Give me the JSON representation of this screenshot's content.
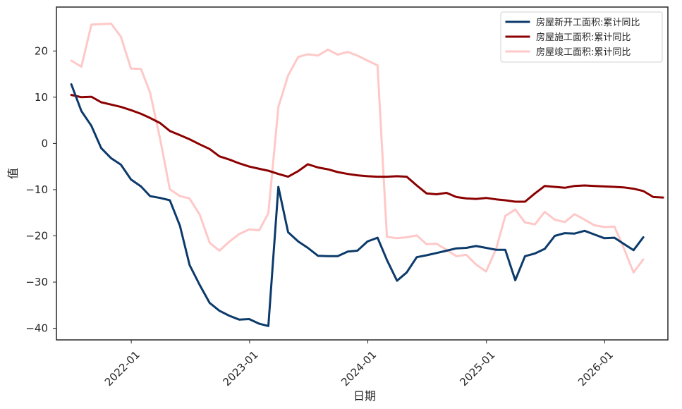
{
  "chart_data": {
    "type": "line",
    "title": "",
    "xlabel": "日期",
    "ylabel": "值",
    "xlim": [
      "2021-05-15",
      "2026-07-15"
    ],
    "ylim": [
      -42.5,
      29.5
    ],
    "x_ticks": [
      "2022-01",
      "2023-01",
      "2024-01",
      "2025-01",
      "2026-01"
    ],
    "y_ticks": [
      -40,
      -30,
      -20,
      -10,
      0,
      10,
      20
    ],
    "grid": false,
    "legend_position": "top-right",
    "colors": {
      "新开工": "#0b3a6b",
      "施工": "#8b0000",
      "竣工": "#ffc8c8"
    },
    "series": [
      {
        "name": "房屋新开工面积:累计同比",
        "color": "#0b3a6b",
        "points": [
          [
            "2021-06-30",
            12.8
          ],
          [
            "2021-07-31",
            7.0
          ],
          [
            "2021-08-31",
            3.8
          ],
          [
            "2021-09-30",
            -1.0
          ],
          [
            "2021-10-31",
            -3.2
          ],
          [
            "2021-11-30",
            -4.6
          ],
          [
            "2021-12-31",
            -7.8
          ],
          [
            "2022-01-31",
            -9.3
          ],
          [
            "2022-02-28",
            -11.4
          ],
          [
            "2022-03-31",
            -11.8
          ],
          [
            "2022-04-30",
            -12.3
          ],
          [
            "2022-05-31",
            -17.8
          ],
          [
            "2022-06-30",
            -26.3
          ],
          [
            "2022-07-31",
            -30.6
          ],
          [
            "2022-08-31",
            -34.5
          ],
          [
            "2022-09-30",
            -36.2
          ],
          [
            "2022-10-31",
            -37.3
          ],
          [
            "2022-11-30",
            -38.1
          ],
          [
            "2022-12-31",
            -38.0
          ],
          [
            "2023-01-31",
            -39.0
          ],
          [
            "2023-02-28",
            -39.5
          ],
          [
            "2023-03-31",
            -9.4
          ],
          [
            "2023-04-30",
            -19.2
          ],
          [
            "2023-05-31",
            -21.2
          ],
          [
            "2023-06-30",
            -22.6
          ],
          [
            "2023-07-31",
            -24.3
          ],
          [
            "2023-08-31",
            -24.4
          ],
          [
            "2023-09-30",
            -24.4
          ],
          [
            "2023-10-31",
            -23.4
          ],
          [
            "2023-11-30",
            -23.2
          ],
          [
            "2023-12-31",
            -21.2
          ],
          [
            "2024-01-31",
            -20.4
          ],
          [
            "2024-02-29",
            -25.2
          ],
          [
            "2024-03-31",
            -29.7
          ],
          [
            "2024-04-30",
            -27.9
          ],
          [
            "2024-05-31",
            -24.6
          ],
          [
            "2024-06-30",
            -24.2
          ],
          [
            "2024-07-31",
            -23.7
          ],
          [
            "2024-08-31",
            -23.2
          ],
          [
            "2024-09-30",
            -22.7
          ],
          [
            "2024-10-31",
            -22.6
          ],
          [
            "2024-11-30",
            -22.2
          ],
          [
            "2024-12-31",
            -22.6
          ],
          [
            "2025-01-31",
            -23.0
          ],
          [
            "2025-02-28",
            -23.0
          ],
          [
            "2025-03-31",
            -29.6
          ],
          [
            "2025-04-30",
            -24.4
          ],
          [
            "2025-05-31",
            -23.8
          ],
          [
            "2025-06-30",
            -22.8
          ],
          [
            "2025-07-31",
            -20.0
          ],
          [
            "2025-08-31",
            -19.4
          ],
          [
            "2025-09-30",
            -19.5
          ],
          [
            "2025-10-31",
            -18.9
          ],
          [
            "2025-11-30",
            -19.7
          ],
          [
            "2025-12-31",
            -20.5
          ],
          [
            "2026-01-31",
            -20.4
          ],
          [
            "2026-02-28",
            -21.7
          ],
          [
            "2026-03-31",
            -23.1
          ],
          [
            "2026-04-30",
            -20.3
          ]
        ]
      },
      {
        "name": "房屋施工面积:累计同比",
        "color": "#8b0000",
        "points": [
          [
            "2021-06-30",
            10.5
          ],
          [
            "2021-07-31",
            10.0
          ],
          [
            "2021-08-31",
            10.1
          ],
          [
            "2021-09-30",
            8.9
          ],
          [
            "2021-10-31",
            8.4
          ],
          [
            "2021-11-30",
            7.9
          ],
          [
            "2021-12-31",
            7.2
          ],
          [
            "2022-01-31",
            6.4
          ],
          [
            "2022-02-28",
            5.5
          ],
          [
            "2022-03-31",
            4.4
          ],
          [
            "2022-04-30",
            2.7
          ],
          [
            "2022-05-31",
            1.8
          ],
          [
            "2022-06-30",
            0.9
          ],
          [
            "2022-07-31",
            -0.2
          ],
          [
            "2022-08-31",
            -1.2
          ],
          [
            "2022-09-30",
            -2.8
          ],
          [
            "2022-10-31",
            -3.5
          ],
          [
            "2022-11-30",
            -4.3
          ],
          [
            "2022-12-31",
            -5.0
          ],
          [
            "2023-01-31",
            -5.5
          ],
          [
            "2023-02-28",
            -5.9
          ],
          [
            "2023-03-31",
            -6.6
          ],
          [
            "2023-04-30",
            -7.2
          ],
          [
            "2023-05-31",
            -6.0
          ],
          [
            "2023-06-30",
            -4.5
          ],
          [
            "2023-07-31",
            -5.2
          ],
          [
            "2023-08-31",
            -5.6
          ],
          [
            "2023-09-30",
            -6.2
          ],
          [
            "2023-10-31",
            -6.6
          ],
          [
            "2023-11-30",
            -6.9
          ],
          [
            "2023-12-31",
            -7.1
          ],
          [
            "2024-01-31",
            -7.2
          ],
          [
            "2024-02-29",
            -7.2
          ],
          [
            "2024-03-31",
            -7.1
          ],
          [
            "2024-04-30",
            -7.2
          ],
          [
            "2024-05-31",
            -9.1
          ],
          [
            "2024-06-30",
            -10.8
          ],
          [
            "2024-07-31",
            -11.0
          ],
          [
            "2024-08-31",
            -10.7
          ],
          [
            "2024-09-30",
            -11.6
          ],
          [
            "2024-10-31",
            -11.9
          ],
          [
            "2024-11-30",
            -12.0
          ],
          [
            "2024-12-31",
            -11.8
          ],
          [
            "2025-01-31",
            -12.1
          ],
          [
            "2025-02-28",
            -12.3
          ],
          [
            "2025-03-31",
            -12.6
          ],
          [
            "2025-04-30",
            -12.6
          ],
          [
            "2025-05-31",
            -10.8
          ],
          [
            "2025-06-30",
            -9.2
          ],
          [
            "2025-07-31",
            -9.4
          ],
          [
            "2025-08-31",
            -9.6
          ],
          [
            "2025-09-30",
            -9.2
          ],
          [
            "2025-10-31",
            -9.1
          ],
          [
            "2025-11-30",
            -9.2
          ],
          [
            "2025-12-31",
            -9.3
          ],
          [
            "2026-01-31",
            -9.4
          ],
          [
            "2026-02-28",
            -9.5
          ],
          [
            "2026-03-31",
            -9.8
          ],
          [
            "2026-04-30",
            -10.3
          ],
          [
            "2026-05-31",
            -11.6
          ],
          [
            "2026-06-30",
            -11.7
          ]
        ]
      },
      {
        "name": "房屋竣工面积:累计同比",
        "color": "#ffc8c8",
        "points": [
          [
            "2021-06-30",
            17.9
          ],
          [
            "2021-07-31",
            16.6
          ],
          [
            "2021-08-31",
            25.7
          ],
          [
            "2021-09-30",
            25.8
          ],
          [
            "2021-10-31",
            25.9
          ],
          [
            "2021-11-30",
            23.1
          ],
          [
            "2021-12-31",
            16.2
          ],
          [
            "2022-01-31",
            16.1
          ],
          [
            "2022-02-28",
            11.0
          ],
          [
            "2022-03-31",
            1.0
          ],
          [
            "2022-04-30",
            -9.9
          ],
          [
            "2022-05-31",
            -11.4
          ],
          [
            "2022-06-30",
            -11.9
          ],
          [
            "2022-07-31",
            -15.4
          ],
          [
            "2022-08-31",
            -21.5
          ],
          [
            "2022-09-30",
            -23.2
          ],
          [
            "2022-10-31",
            -21.2
          ],
          [
            "2022-11-30",
            -19.6
          ],
          [
            "2022-12-31",
            -18.6
          ],
          [
            "2023-01-31",
            -18.8
          ],
          [
            "2023-02-28",
            -15.1
          ],
          [
            "2023-03-31",
            7.9
          ],
          [
            "2023-04-30",
            14.7
          ],
          [
            "2023-05-31",
            18.7
          ],
          [
            "2023-06-30",
            19.3
          ],
          [
            "2023-07-31",
            19.0
          ],
          [
            "2023-08-31",
            20.3
          ],
          [
            "2023-09-30",
            19.2
          ],
          [
            "2023-10-31",
            19.8
          ],
          [
            "2023-11-30",
            19.0
          ],
          [
            "2023-12-31",
            17.9
          ],
          [
            "2024-01-31",
            16.9
          ],
          [
            "2024-02-29",
            -20.2
          ],
          [
            "2024-03-31",
            -20.5
          ],
          [
            "2024-04-30",
            -20.3
          ],
          [
            "2024-05-31",
            -19.9
          ],
          [
            "2024-06-30",
            -21.8
          ],
          [
            "2024-07-31",
            -21.7
          ],
          [
            "2024-08-31",
            -23.0
          ],
          [
            "2024-09-30",
            -24.4
          ],
          [
            "2024-10-31",
            -24.1
          ],
          [
            "2024-11-30",
            -26.2
          ],
          [
            "2024-12-31",
            -27.7
          ],
          [
            "2025-01-31",
            -22.8
          ],
          [
            "2025-02-28",
            -15.7
          ],
          [
            "2025-03-31",
            -14.3
          ],
          [
            "2025-04-30",
            -17.1
          ],
          [
            "2025-05-31",
            -17.5
          ],
          [
            "2025-06-30",
            -14.8
          ],
          [
            "2025-07-31",
            -16.5
          ],
          [
            "2025-08-31",
            -17.0
          ],
          [
            "2025-09-30",
            -15.3
          ],
          [
            "2025-10-31",
            -16.5
          ],
          [
            "2025-11-30",
            -17.7
          ],
          [
            "2025-12-31",
            -18.1
          ],
          [
            "2026-01-31",
            -18.0
          ],
          [
            "2026-02-28",
            -22.5
          ],
          [
            "2026-03-31",
            -27.9
          ],
          [
            "2026-04-30",
            -25.1
          ]
        ]
      }
    ]
  }
}
